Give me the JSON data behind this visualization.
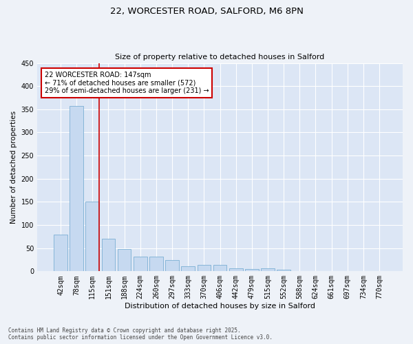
{
  "title1": "22, WORCESTER ROAD, SALFORD, M6 8PN",
  "title2": "Size of property relative to detached houses in Salford",
  "xlabel": "Distribution of detached houses by size in Salford",
  "ylabel": "Number of detached properties",
  "categories": [
    "42sqm",
    "78sqm",
    "115sqm",
    "151sqm",
    "188sqm",
    "224sqm",
    "260sqm",
    "297sqm",
    "333sqm",
    "370sqm",
    "406sqm",
    "442sqm",
    "479sqm",
    "515sqm",
    "552sqm",
    "588sqm",
    "624sqm",
    "661sqm",
    "697sqm",
    "734sqm",
    "770sqm"
  ],
  "values": [
    80,
    357,
    150,
    70,
    48,
    32,
    32,
    25,
    11,
    14,
    14,
    6,
    5,
    7,
    3,
    1,
    1,
    0,
    1,
    1,
    0
  ],
  "bar_color": "#c6d9f0",
  "bar_edge_color": "#7bafd4",
  "highlight_bar_index": 2,
  "highlight_line_color": "#cc0000",
  "annotation_text": "22 WORCESTER ROAD: 147sqm\n← 71% of detached houses are smaller (572)\n29% of semi-detached houses are larger (231) →",
  "annotation_box_color": "#ffffff",
  "annotation_box_edge": "#cc0000",
  "ylim": [
    0,
    450
  ],
  "yticks": [
    0,
    50,
    100,
    150,
    200,
    250,
    300,
    350,
    400,
    450
  ],
  "footer1": "Contains HM Land Registry data © Crown copyright and database right 2025.",
  "footer2": "Contains public sector information licensed under the Open Government Licence v3.0.",
  "bg_color": "#eef2f8",
  "plot_bg_color": "#dce6f5"
}
